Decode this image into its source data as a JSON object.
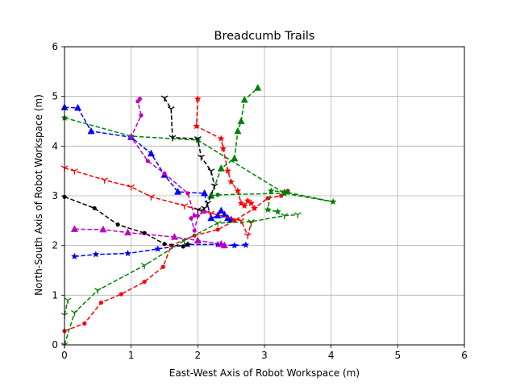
{
  "chart_data": {
    "type": "scatter",
    "title": "Breadcumb Trails",
    "xlabel": "East-West Axis of Robot Workspace (m)",
    "ylabel": "North-South Axis of Robot Workspace (m)",
    "xlim": [
      0,
      6
    ],
    "ylim": [
      0,
      6
    ],
    "x_ticks": [
      "0",
      "1",
      "2",
      "3",
      "4",
      "5",
      "6"
    ],
    "y_ticks": [
      "0",
      "1",
      "2",
      "3",
      "4",
      "5",
      "6"
    ],
    "grid": true,
    "series": [
      {
        "color": "#0000ff",
        "marker": "triangle",
        "points": [
          [
            0,
            4.78
          ],
          [
            0.2,
            4.77
          ],
          [
            0.4,
            4.3
          ],
          [
            1.0,
            4.18
          ],
          [
            1.3,
            3.85
          ],
          [
            1.5,
            3.42
          ],
          [
            1.7,
            3.08
          ],
          [
            2.1,
            3.05
          ],
          [
            2.2,
            2.55
          ],
          [
            2.3,
            2.6
          ],
          [
            2.35,
            2.7
          ],
          [
            2.4,
            2.62
          ],
          [
            2.45,
            2.55
          ],
          [
            2.5,
            2.52
          ]
        ]
      },
      {
        "color": "#0000ff",
        "marker": "star",
        "points": [
          [
            0.15,
            1.78
          ],
          [
            0.47,
            1.82
          ],
          [
            0.95,
            1.84
          ],
          [
            1.4,
            1.93
          ],
          [
            1.85,
            2.02
          ],
          [
            2.3,
            2.02
          ],
          [
            2.55,
            2.0
          ],
          [
            2.72,
            2.01
          ]
        ]
      },
      {
        "color": "#ff0000",
        "marker": "circle",
        "points": [
          [
            0,
            0.28
          ],
          [
            0.3,
            0.43
          ],
          [
            0.55,
            0.85
          ],
          [
            0.85,
            1.02
          ],
          [
            1.2,
            1.27
          ],
          [
            1.48,
            1.57
          ],
          [
            1.6,
            2.0
          ],
          [
            1.95,
            2.2
          ],
          [
            2.3,
            2.32
          ],
          [
            2.55,
            2.5
          ],
          [
            2.85,
            2.75
          ],
          [
            3.05,
            2.95
          ],
          [
            3.25,
            3.0
          ],
          [
            3.35,
            3.1
          ]
        ]
      },
      {
        "color": "#ff0000",
        "marker": "tri_down",
        "points": [
          [
            0,
            3.56
          ],
          [
            0.15,
            3.5
          ],
          [
            0.6,
            3.32
          ],
          [
            1.0,
            3.18
          ],
          [
            1.3,
            2.98
          ],
          [
            1.8,
            2.8
          ],
          [
            2.2,
            2.65
          ],
          [
            2.65,
            2.5
          ],
          [
            2.75,
            2.2
          ],
          [
            2.8,
            2.45
          ]
        ]
      },
      {
        "color": "#ff0000",
        "marker": "star",
        "points": [
          [
            2.0,
            4.95
          ],
          [
            1.98,
            4.4
          ],
          [
            2.35,
            4.15
          ],
          [
            2.38,
            3.95
          ],
          [
            2.45,
            3.5
          ],
          [
            2.5,
            3.28
          ],
          [
            2.6,
            3.1
          ],
          [
            2.65,
            2.85
          ],
          [
            2.7,
            2.8
          ],
          [
            2.75,
            2.9
          ],
          [
            2.8,
            2.85
          ],
          [
            2.85,
            2.75
          ],
          [
            2.8,
            2.85
          ]
        ]
      },
      {
        "color": "#008000",
        "marker": "tri_down",
        "points": [
          [
            0,
            0
          ],
          [
            0.15,
            0.65
          ],
          [
            0.5,
            1.1
          ],
          [
            1.2,
            1.6
          ],
          [
            1.8,
            2.1
          ],
          [
            2.3,
            2.45
          ],
          [
            2.8,
            2.48
          ],
          [
            3.3,
            2.6
          ],
          [
            3.5,
            2.62
          ]
        ]
      },
      {
        "color": "#008000",
        "marker": "triangle",
        "points": [
          [
            2.2,
            3.0
          ],
          [
            2.35,
            3.55
          ],
          [
            2.55,
            3.75
          ],
          [
            2.6,
            4.3
          ],
          [
            2.65,
            4.5
          ],
          [
            2.7,
            4.93
          ],
          [
            2.9,
            5.17
          ]
        ]
      },
      {
        "color": "#008000",
        "marker": "star",
        "points": [
          [
            0,
            4.57
          ],
          [
            1.0,
            4.2
          ],
          [
            2.0,
            4.12
          ],
          [
            3.3,
            3.05
          ],
          [
            4.03,
            2.88
          ],
          [
            3.3,
            3.08
          ],
          [
            3.1,
            3.1
          ],
          [
            3.05,
            2.72
          ],
          [
            3.2,
            2.68
          ]
        ]
      },
      {
        "color": "#008000",
        "marker": "circle",
        "points": [
          [
            2.2,
            3.0
          ],
          [
            2.3,
            3.02
          ],
          [
            3.3,
            3.05
          ],
          [
            3.35,
            3.08
          ]
        ]
      },
      {
        "color": "#008000",
        "marker": "tri_down",
        "points": [
          [
            0,
            0.6
          ],
          [
            0.05,
            0.9
          ]
        ]
      },
      {
        "color": "#000000",
        "marker": "circle",
        "points": [
          [
            0,
            2.98
          ],
          [
            0.45,
            2.75
          ],
          [
            0.8,
            2.42
          ],
          [
            1.2,
            2.25
          ],
          [
            1.5,
            2.03
          ],
          [
            1.78,
            1.98
          ],
          [
            1.85,
            2.02
          ]
        ]
      },
      {
        "color": "#000000",
        "marker": "tri_down",
        "points": [
          [
            1.5,
            4.97
          ],
          [
            1.6,
            4.75
          ],
          [
            1.62,
            4.17
          ],
          [
            2.0,
            4.15
          ],
          [
            2.05,
            3.78
          ],
          [
            2.2,
            3.5
          ],
          [
            2.25,
            3.2
          ],
          [
            2.15,
            2.85
          ],
          [
            2.1,
            2.75
          ],
          [
            2.05,
            2.7
          ],
          [
            2.0,
            2.72
          ]
        ]
      },
      {
        "color": "#bf00bf",
        "marker": "circle",
        "points": [
          [
            1.13,
            4.95
          ],
          [
            1.1,
            4.9
          ],
          [
            1.15,
            4.62
          ],
          [
            1.0,
            4.18
          ],
          [
            1.25,
            3.7
          ],
          [
            1.5,
            3.45
          ],
          [
            1.85,
            3.05
          ],
          [
            1.95,
            2.6
          ],
          [
            1.9,
            2.55
          ],
          [
            1.95,
            2.3
          ],
          [
            2.0,
            2.6
          ],
          [
            2.1,
            2.68
          ]
        ]
      },
      {
        "color": "#bf00bf",
        "marker": "triangle",
        "points": [
          [
            0.15,
            2.33
          ],
          [
            0.58,
            2.32
          ],
          [
            0.95,
            2.26
          ],
          [
            1.65,
            2.17
          ],
          [
            2.0,
            2.1
          ],
          [
            2.35,
            2.03
          ],
          [
            2.4,
            2.0
          ]
        ]
      }
    ]
  }
}
